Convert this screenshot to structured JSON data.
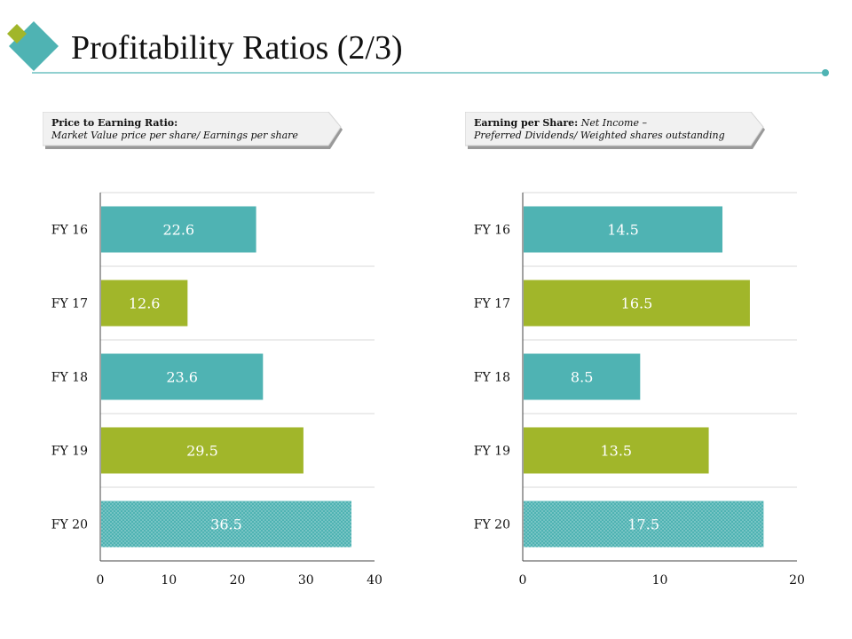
{
  "page": {
    "title": "Profitability Ratios (2/3)"
  },
  "colors": {
    "teal": "#4fb3b3",
    "green": "#a1b62a",
    "rule": "#4fb3b3",
    "grid": "#d9d9d9",
    "axis": "#444444"
  },
  "callouts": [
    {
      "bold": "Price to Earning Ratio:",
      "italic1": "",
      "italic2": "Market Value price per share/ Earnings per share"
    },
    {
      "bold": "Earning per Share:",
      "italic1": " Net Income –",
      "italic2": "Preferred Dividends/ Weighted shares outstanding"
    }
  ],
  "chart_data": [
    {
      "type": "bar",
      "orientation": "horizontal",
      "title": "Price to Earning Ratio",
      "categories": [
        "FY 16",
        "FY 17",
        "FY 18",
        "FY 19",
        "FY 20"
      ],
      "values": [
        22.6,
        12.6,
        23.6,
        29.5,
        36.5
      ],
      "value_labels": [
        "22.6",
        "12.6",
        "23.6",
        "29.5",
        "36.5"
      ],
      "bar_colors": [
        "teal",
        "green",
        "teal",
        "green",
        "teal-dotted"
      ],
      "xlim": [
        0,
        40
      ],
      "xticks": [
        0,
        10,
        20,
        30,
        40
      ],
      "xtick_labels": [
        "0",
        "10",
        "20",
        "30",
        "40"
      ],
      "grid": true
    },
    {
      "type": "bar",
      "orientation": "horizontal",
      "title": "Earning per Share",
      "categories": [
        "FY 16",
        "FY 17",
        "FY 18",
        "FY 19",
        "FY 20"
      ],
      "values": [
        14.5,
        16.5,
        8.5,
        13.5,
        17.5
      ],
      "value_labels": [
        "14.5",
        "16.5",
        "8.5",
        "13.5",
        "17.5"
      ],
      "bar_colors": [
        "teal",
        "green",
        "teal",
        "green",
        "teal-dotted"
      ],
      "xlim": [
        0,
        20
      ],
      "xticks": [
        0,
        10,
        20
      ],
      "xtick_labels": [
        "0",
        "10",
        "20"
      ],
      "grid": true
    }
  ]
}
